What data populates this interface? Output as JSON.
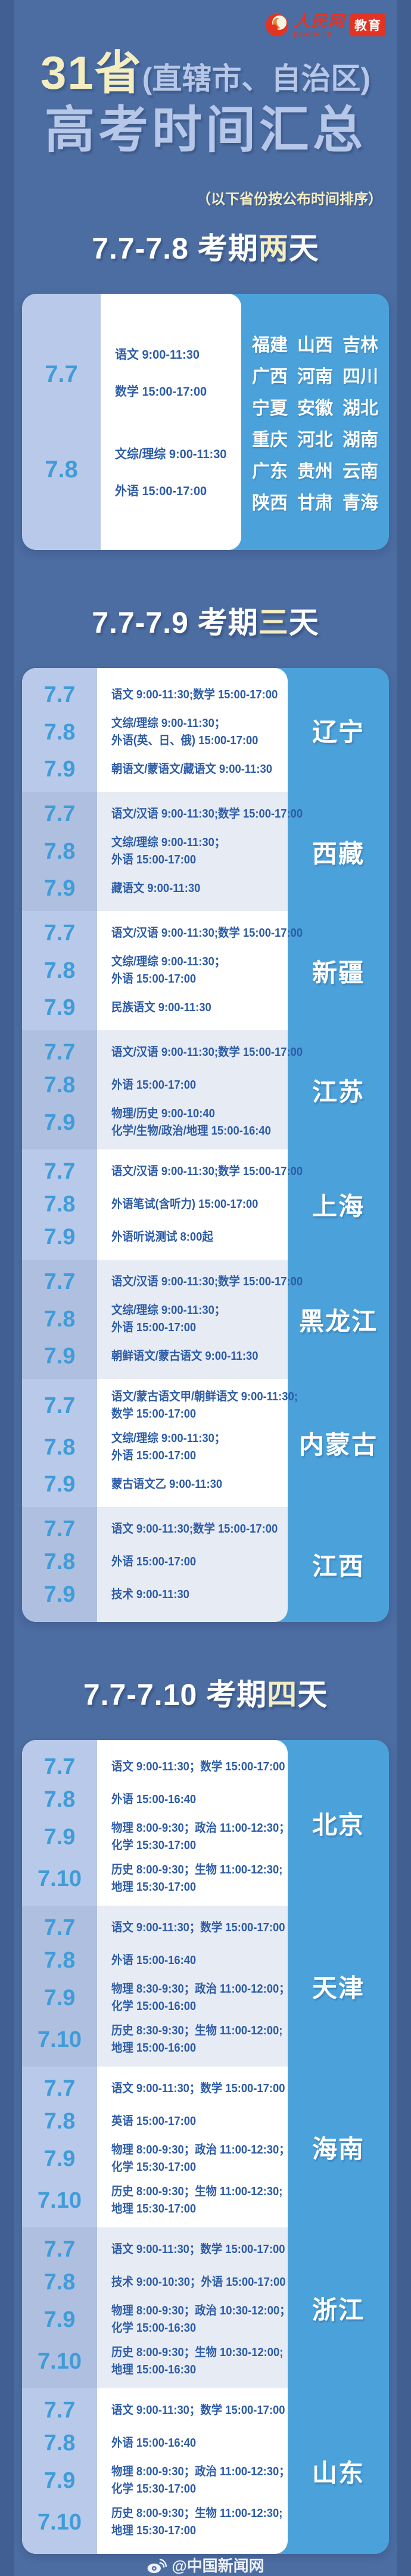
{
  "header": {
    "logo_brand": "人民网",
    "logo_sub": "people.cn",
    "badge": "教育"
  },
  "title": {
    "line1_highlight": "31省",
    "line1_rest": "(直辖市、自治区)",
    "line2": "高考时间汇总",
    "subtitle": "（以下省份按公布时间排序）"
  },
  "colors": {
    "background": "#4c6da2",
    "card_blue": "#4ba1da",
    "date_col_light": "#b9c9e9",
    "date_col_dark": "#aebfe0",
    "row_alt": "#e7ebf3",
    "date_text": "#3f9cd9",
    "subject_text": "#2d5ca7",
    "cream_highlight": "#f4edc0",
    "title_light_blue": "#b6c7e8",
    "logo_red": "#e23323"
  },
  "sections": [
    {
      "id": "two-days",
      "title_prefix": "7.7-7.8 考期",
      "title_highlight": "两",
      "title_suffix": "天",
      "wide_provinces": [
        "福建",
        "山西",
        "吉林",
        "广西",
        "河南",
        "四川",
        "宁夏",
        "安徽",
        "湖北",
        "重庆",
        "河北",
        "湖南",
        "广东",
        "贵州",
        "云南",
        "陕西",
        "甘肃",
        "青海"
      ],
      "rows": [
        {
          "entries": [
            {
              "date": "7.7",
              "lines": [
                "语文 9:00-11:30",
                "数学 15:00-17:00"
              ]
            },
            {
              "date": "7.8",
              "lines": [
                "文综/理综 9:00-11:30",
                "外语 15:00-17:00"
              ]
            }
          ]
        }
      ]
    },
    {
      "id": "three-days",
      "title_prefix": "7.7-7.9 考期",
      "title_highlight": "三",
      "title_suffix": "天",
      "rows": [
        {
          "province": "辽宁",
          "entries": [
            {
              "date": "7.7",
              "lines": [
                "语文 9:00-11:30;数学 15:00-17:00"
              ]
            },
            {
              "date": "7.8",
              "lines": [
                "文综/理综 9:00-11:30；",
                "外语(英、日、俄) 15:00-17:00"
              ]
            },
            {
              "date": "7.9",
              "lines": [
                "朝语文/蒙语文/藏语文 9:00-11:30"
              ]
            }
          ]
        },
        {
          "province": "西藏",
          "entries": [
            {
              "date": "7.7",
              "lines": [
                "语文/汉语 9:00-11:30;数学 15:00-17:00"
              ]
            },
            {
              "date": "7.8",
              "lines": [
                "文综/理综 9:00-11:30；",
                "外语 15:00-17:00"
              ]
            },
            {
              "date": "7.9",
              "lines": [
                "藏语文 9:00-11:30"
              ]
            }
          ]
        },
        {
          "province": "新疆",
          "entries": [
            {
              "date": "7.7",
              "lines": [
                "语文/汉语 9:00-11:30;数学 15:00-17:00"
              ]
            },
            {
              "date": "7.8",
              "lines": [
                "文综/理综 9:00-11:30；",
                "外语 15:00-17:00"
              ]
            },
            {
              "date": "7.9",
              "lines": [
                "民族语文 9:00-11:30"
              ]
            }
          ]
        },
        {
          "province": "江苏",
          "entries": [
            {
              "date": "7.7",
              "lines": [
                "语文/汉语 9:00-11:30;数学 15:00-17:00"
              ]
            },
            {
              "date": "7.8",
              "lines": [
                "外语 15:00-17:00"
              ]
            },
            {
              "date": "7.9",
              "lines": [
                "物理/历史 9:00-10:40",
                "化学/生物/政治/地理 15:00-16:40"
              ]
            }
          ]
        },
        {
          "province": "上海",
          "entries": [
            {
              "date": "7.7",
              "lines": [
                "语文/汉语 9:00-11:30;数学 15:00-17:00"
              ]
            },
            {
              "date": "7.8",
              "lines": [
                "外语笔试(含听力) 15:00-17:00"
              ]
            },
            {
              "date": "7.9",
              "lines": [
                "外语听说测试 8:00起"
              ]
            }
          ]
        },
        {
          "province": "黑龙江",
          "entries": [
            {
              "date": "7.7",
              "lines": [
                "语文/汉语 9:00-11:30;数学 15:00-17:00"
              ]
            },
            {
              "date": "7.8",
              "lines": [
                "文综/理综 9:00-11:30；",
                "外语 15:00-17:00"
              ]
            },
            {
              "date": "7.9",
              "lines": [
                "朝鲜语文/蒙古语文 9:00-11:30"
              ]
            }
          ]
        },
        {
          "province": "内蒙古",
          "entries": [
            {
              "date": "7.7",
              "lines": [
                "语文/蒙古语文甲/朝鲜语文 9:00-11:30;",
                "数学 15:00-17:00"
              ]
            },
            {
              "date": "7.8",
              "lines": [
                "文综/理综 9:00-11:30；",
                "外语 15:00-17:00"
              ]
            },
            {
              "date": "7.9",
              "lines": [
                "蒙古语文乙 9:00-11:30"
              ]
            }
          ]
        },
        {
          "province": "江西",
          "entries": [
            {
              "date": "7.7",
              "lines": [
                "语文 9:00-11:30;数学 15:00-17:00"
              ]
            },
            {
              "date": "7.8",
              "lines": [
                "外语 15:00-17:00"
              ]
            },
            {
              "date": "7.9",
              "lines": [
                "技术 9:00-11:30"
              ]
            }
          ]
        }
      ]
    },
    {
      "id": "four-days",
      "title_prefix": "7.7-7.10 考期",
      "title_highlight": "四",
      "title_suffix": "天",
      "rows": [
        {
          "province": "北京",
          "entries": [
            {
              "date": "7.7",
              "lines": [
                "语文 9:00-11:30；数学 15:00-17:00"
              ]
            },
            {
              "date": "7.8",
              "lines": [
                "外语 15:00-16:40"
              ]
            },
            {
              "date": "7.9",
              "lines": [
                "物理 8:00-9:30；政治 11:00-12:30；",
                "化学 15:30-17:00"
              ]
            },
            {
              "date": "7.10",
              "lines": [
                "历史 8:00-9:30；生物 11:00-12:30;",
                "地理 15:30-17:00"
              ]
            }
          ]
        },
        {
          "province": "天津",
          "entries": [
            {
              "date": "7.7",
              "lines": [
                "语文 9:00-11:30；数学 15:00-17:00"
              ]
            },
            {
              "date": "7.8",
              "lines": [
                "外语 15:00-16:40"
              ]
            },
            {
              "date": "7.9",
              "lines": [
                "物理 8:30-9:30；政治 11:00-12:00；",
                "化学 15:00-16:00"
              ]
            },
            {
              "date": "7.10",
              "lines": [
                "历史 8:30-9:30；生物 11:00-12:00;",
                "地理 15:00-16:00"
              ]
            }
          ]
        },
        {
          "province": "海南",
          "entries": [
            {
              "date": "7.7",
              "lines": [
                "语文 9:00-11:30；数学 15:00-17:00"
              ]
            },
            {
              "date": "7.8",
              "lines": [
                "英语 15:00-17:00"
              ]
            },
            {
              "date": "7.9",
              "lines": [
                "物理 8:00-9:30；政治 11:00-12:30；",
                "化学 15:30-17:00"
              ]
            },
            {
              "date": "7.10",
              "lines": [
                "历史 8:00-9:30；生物 11:00-12:30;",
                "地理 15:30-17:00"
              ]
            }
          ]
        },
        {
          "province": "浙江",
          "entries": [
            {
              "date": "7.7",
              "lines": [
                "语文 9:00-11:30；数学 15:00-17:00"
              ]
            },
            {
              "date": "7.8",
              "lines": [
                "技术 9:00-10:30；外语 15:00-17:00"
              ]
            },
            {
              "date": "7.9",
              "lines": [
                "物理 8:00-9:30；政治 10:30-12:00；",
                "化学 15:00-16:30"
              ]
            },
            {
              "date": "7.10",
              "lines": [
                "历史 8:00-9:30；生物 10:30-12:00;",
                "地理 15:00-16:30"
              ]
            }
          ]
        },
        {
          "province": "山东",
          "entries": [
            {
              "date": "7.7",
              "lines": [
                "语文 9:00-11:30；数学 15:00-17:00"
              ]
            },
            {
              "date": "7.8",
              "lines": [
                "外语 15:00-16:40"
              ]
            },
            {
              "date": "7.9",
              "lines": [
                "物理 8:00-9:30；政治 11:00-12:30；",
                "化学 15:30-17:00"
              ]
            },
            {
              "date": "7.10",
              "lines": [
                "历史 8:00-9:30；生物 11:00-12:30;",
                "地理 15:30-17:00"
              ]
            }
          ]
        }
      ]
    }
  ],
  "footer": {
    "credit": "@中国新闻网"
  }
}
